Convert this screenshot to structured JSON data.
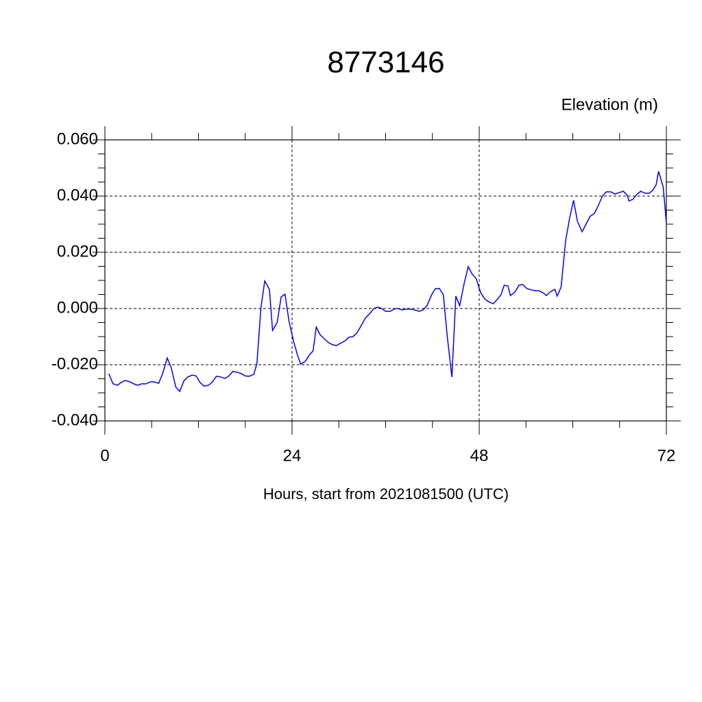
{
  "chart_data": {
    "type": "line",
    "title": "8773146",
    "ylabel": "Elevation (m)",
    "xlabel": "Hours, start from 2021081500 (UTC)",
    "xlim": [
      0,
      72
    ],
    "ylim": [
      -0.04,
      0.06
    ],
    "xticks": [
      0,
      24,
      48,
      72
    ],
    "xminorticks": [
      6,
      12,
      18,
      30,
      36,
      42,
      54,
      60,
      66
    ],
    "yticks": [
      {
        "value": -0.04,
        "label": "-0.040"
      },
      {
        "value": -0.02,
        "label": "-0.020"
      },
      {
        "value": 0,
        "label": "0.000"
      },
      {
        "value": 0.02,
        "label": "0.020"
      },
      {
        "value": 0.04,
        "label": "0.040"
      },
      {
        "value": 0.06,
        "label": "0.060"
      }
    ],
    "yminorticks": [
      -0.035,
      -0.03,
      -0.025,
      -0.015,
      -0.01,
      -0.005,
      0.005,
      0.01,
      0.015,
      0.025,
      0.03,
      0.035,
      0.045,
      0.05,
      0.055
    ],
    "grid": true,
    "series": [
      {
        "color": "#0000ee",
        "x": [
          0.5,
          1.05,
          1.6,
          2.1,
          2.6,
          3.2,
          3.7,
          4.2,
          4.7,
          5.3,
          5.8,
          6.3,
          6.9,
          7.4,
          8.0,
          8.5,
          9.1,
          9.6,
          10.1,
          10.6,
          11.2,
          11.7,
          12.2,
          12.7,
          13.3,
          13.8,
          14.3,
          14.9,
          15.4,
          15.9,
          16.4,
          17.0,
          17.5,
          18.0,
          18.5,
          19.1,
          19.5,
          20.0,
          20.5,
          21.1,
          21.5,
          22.1,
          22.6,
          23.1,
          23.6,
          24.2,
          24.7,
          25.1,
          25.7,
          26.2,
          26.7,
          27.1,
          27.6,
          28.1,
          28.7,
          29.2,
          29.7,
          30.2,
          30.8,
          31.3,
          31.8,
          32.3,
          32.9,
          33.4,
          33.9,
          34.5,
          35.0,
          35.5,
          36.0,
          36.6,
          37.1,
          37.6,
          38.1,
          38.7,
          39.2,
          39.7,
          40.3,
          40.8,
          41.3,
          41.9,
          42.4,
          42.9,
          43.4,
          43.9,
          44.5,
          45.0,
          45.5,
          46.1,
          46.6,
          47.1,
          47.6,
          48.2,
          48.7,
          49.2,
          49.8,
          50.3,
          50.8,
          51.2,
          51.7,
          52.0,
          52.6,
          53.1,
          53.6,
          54.1,
          54.7,
          55.2,
          55.7,
          56.3,
          56.6,
          57.1,
          57.7,
          58.0,
          58.5,
          59.1,
          59.6,
          60.1,
          60.6,
          61.2,
          61.7,
          62.2,
          62.8,
          63.3,
          63.8,
          64.3,
          64.9,
          65.4,
          65.9,
          66.5,
          67.0,
          67.2,
          67.7,
          68.2,
          68.7,
          69.3,
          69.8,
          70.3,
          70.7,
          71.0,
          71.6,
          72.0
        ],
        "values": [
          -0.0232,
          -0.0268,
          -0.0273,
          -0.0263,
          -0.0256,
          -0.0261,
          -0.0268,
          -0.0273,
          -0.0268,
          -0.0268,
          -0.0261,
          -0.0261,
          -0.0266,
          -0.0232,
          -0.0176,
          -0.021,
          -0.028,
          -0.0295,
          -0.0259,
          -0.0244,
          -0.0237,
          -0.024,
          -0.0263,
          -0.0276,
          -0.0273,
          -0.0261,
          -0.0241,
          -0.0244,
          -0.0249,
          -0.024,
          -0.0224,
          -0.0227,
          -0.0232,
          -0.024,
          -0.0241,
          -0.0234,
          -0.0195,
          0.0,
          0.0098,
          0.0068,
          -0.0078,
          -0.0049,
          0.0041,
          0.0051,
          -0.0044,
          -0.0117,
          -0.0166,
          -0.0198,
          -0.0188,
          -0.0166,
          -0.0151,
          -0.0066,
          -0.0093,
          -0.0107,
          -0.0122,
          -0.0129,
          -0.0132,
          -0.0124,
          -0.0115,
          -0.0102,
          -0.01,
          -0.0088,
          -0.0059,
          -0.0034,
          -0.002,
          0.0,
          0.0005,
          0.0,
          -0.001,
          -0.001,
          -0.0002,
          0.0,
          -0.0005,
          -0.0002,
          -0.0002,
          -0.0005,
          -0.001,
          -0.0005,
          0.001,
          0.0049,
          0.0071,
          0.0071,
          0.0049,
          -0.0098,
          -0.0244,
          0.0044,
          0.001,
          0.0093,
          0.0149,
          0.0122,
          0.0107,
          0.0056,
          0.0034,
          0.0024,
          0.0017,
          0.0032,
          0.0049,
          0.0083,
          0.008,
          0.0046,
          0.0059,
          0.0083,
          0.0085,
          0.0071,
          0.0066,
          0.0063,
          0.0063,
          0.0054,
          0.0046,
          0.0059,
          0.0068,
          0.0044,
          0.0076,
          0.0244,
          0.0322,
          0.0385,
          0.031,
          0.0273,
          0.03,
          0.0327,
          0.0339,
          0.0368,
          0.04,
          0.0415,
          0.0415,
          0.0407,
          0.0412,
          0.0417,
          0.0402,
          0.0383,
          0.0388,
          0.0405,
          0.0417,
          0.041,
          0.041,
          0.0422,
          0.0441,
          0.0488,
          0.0432,
          0.0305
        ]
      }
    ]
  }
}
